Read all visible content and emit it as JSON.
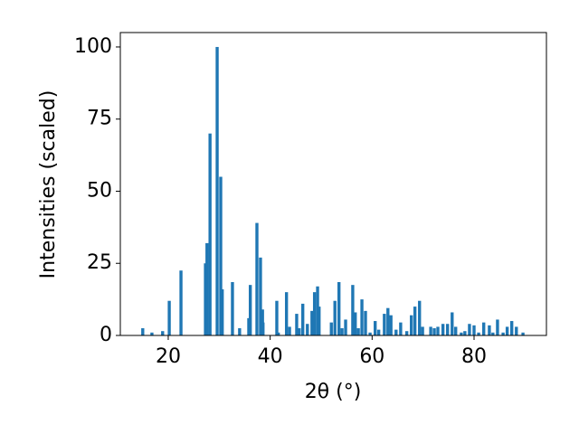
{
  "chart_data": {
    "type": "bar",
    "x": [
      15.0,
      16.8,
      18.9,
      20.2,
      22.5,
      27.3,
      27.6,
      28.2,
      29.6,
      30.3,
      30.6,
      32.6,
      34.0,
      35.8,
      36.1,
      37.4,
      38.1,
      38.5,
      38.6,
      41.3,
      41.6,
      43.2,
      43.8,
      45.2,
      45.7,
      46.4,
      47.3,
      48.2,
      48.7,
      49.3,
      49.6,
      52.0,
      52.7,
      53.5,
      54.1,
      54.8,
      56.2,
      56.7,
      57.3,
      58.0,
      58.7,
      59.6,
      60.6,
      61.3,
      62.4,
      63.1,
      63.7,
      64.7,
      65.6,
      66.8,
      67.7,
      68.4,
      69.3,
      69.9,
      71.5,
      72.2,
      72.9,
      73.9,
      74.8,
      75.7,
      76.4,
      77.5,
      78.2,
      79.1,
      80.0,
      80.9,
      81.9,
      83.0,
      83.7,
      84.6,
      85.7,
      86.5,
      87.4,
      88.3,
      89.6
    ],
    "values": [
      2.5,
      1,
      1.5,
      12,
      22.5,
      25,
      32,
      70,
      100,
      55,
      16,
      18.5,
      2.5,
      6,
      17.5,
      39,
      27,
      9,
      4.5,
      12,
      1,
      15,
      3,
      7.5,
      2.5,
      11,
      4,
      8.5,
      15,
      17,
      10,
      4.5,
      12,
      18.5,
      2.5,
      5.5,
      17.5,
      8,
      2.5,
      12.5,
      8.5,
      1,
      5,
      2,
      7.5,
      9.5,
      7,
      2,
      4.5,
      1.5,
      7,
      10,
      12,
      3,
      3,
      2.5,
      3,
      4,
      4,
      8,
      3,
      1,
      1.5,
      4,
      3.5,
      1,
      4.5,
      3.5,
      1,
      5.5,
      1,
      3,
      5,
      3,
      1
    ],
    "color": "#1f77b4",
    "xlabel": "2θ (°)",
    "ylabel": "Intensities (scaled)",
    "xlim": [
      10.6,
      94.2
    ],
    "xticks": [
      20,
      40,
      60,
      80
    ],
    "ylim": [
      0,
      105
    ],
    "yticks": [
      0,
      25,
      50,
      75,
      100
    ]
  }
}
